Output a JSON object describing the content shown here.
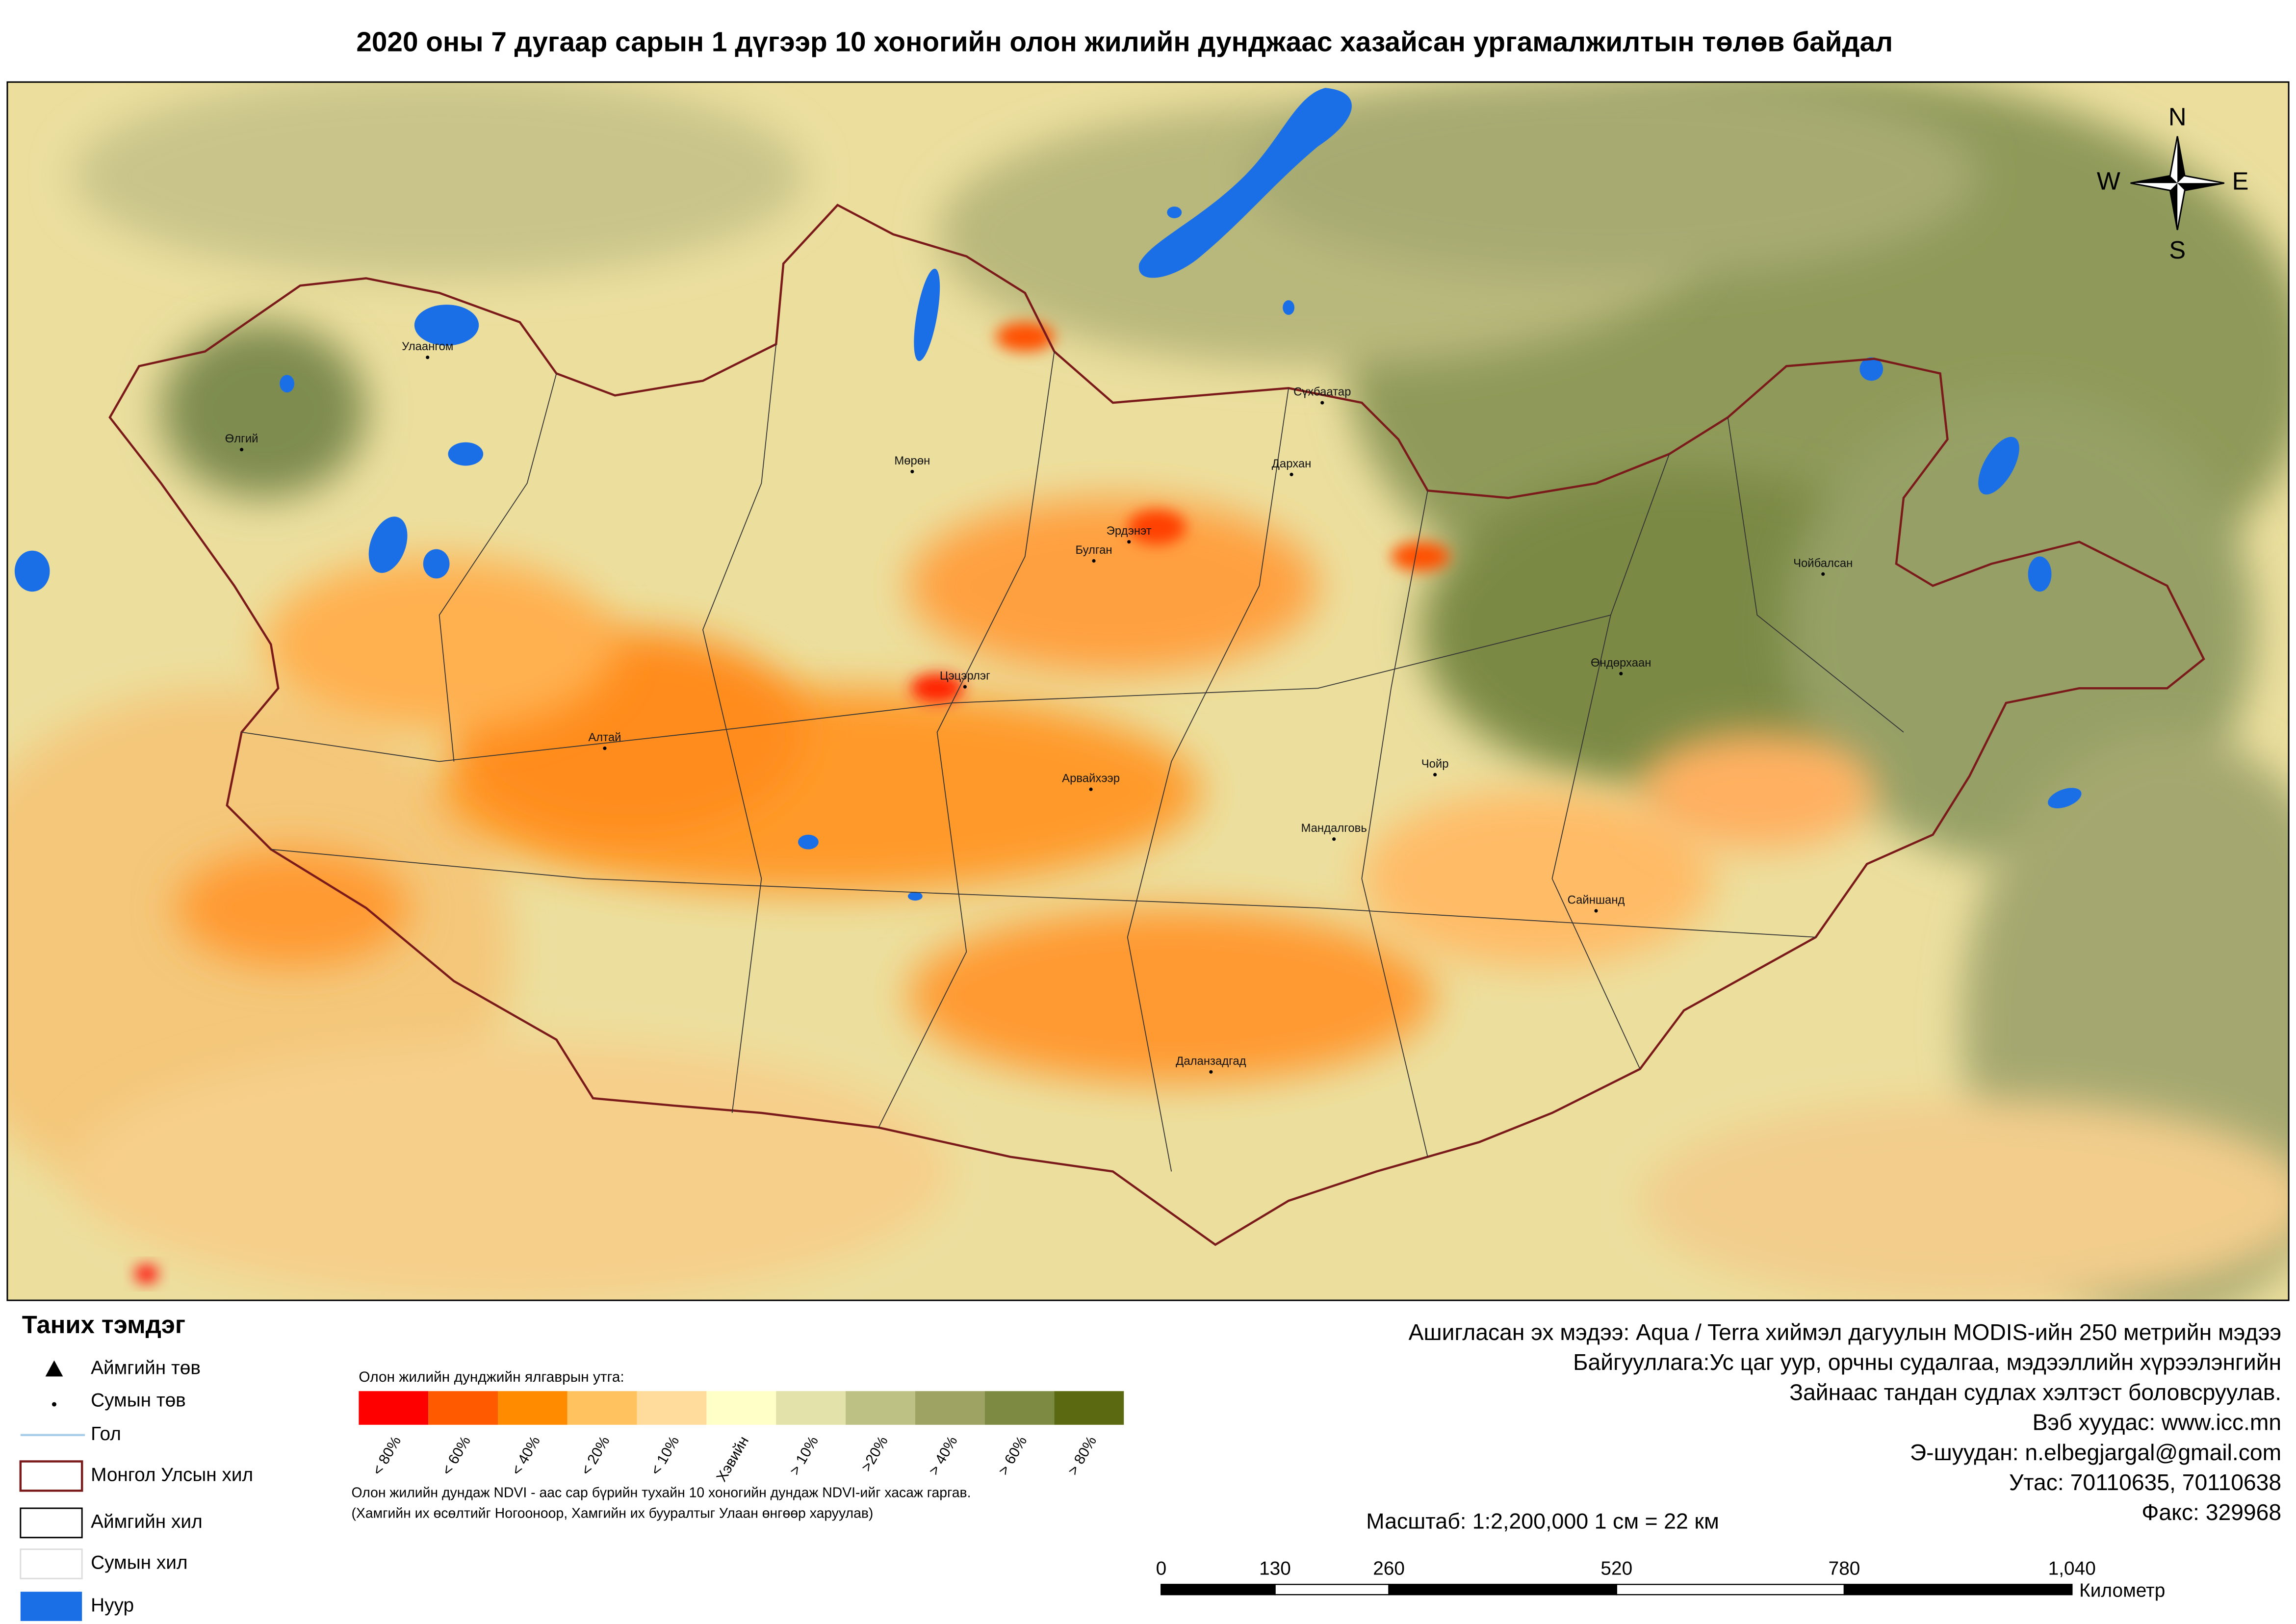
{
  "title": "2020 оны 7 дугаар сарын 1 дүгээр 10 хоногийн олон жилийн дунджаас хазайсан ургамалжилтын төлөв байдал",
  "map": {
    "places": [
      "Улаангом",
      "Өлгий",
      "Мөрөн",
      "Сүхбаатар",
      "Дархан",
      "Эрдэнэт",
      "Булган",
      "Чойбалсан",
      "Өндөрхаан",
      "Цэцэрлэг",
      "Алтай",
      "Арвайхээр",
      "Чойр",
      "Мандалговь",
      "Сайншанд",
      "Даланзадгад"
    ],
    "compass": {
      "n": "N",
      "s": "S",
      "w": "W",
      "e": "E"
    }
  },
  "legend": {
    "title": "Таних тэмдэг",
    "items": [
      "Аймгийн төв",
      "Сумын төв",
      "Гол",
      "Монгол Улсын хил",
      "Аймгийн хил",
      "Сумын хил",
      "Нуур"
    ]
  },
  "ndvi_scale": {
    "title": "Олон жилийн дунджийн ялгаврын утга:",
    "classes": [
      {
        "label": "< 80%",
        "color": "#ff0000"
      },
      {
        "label": "< 60%",
        "color": "#ff5a00"
      },
      {
        "label": "< 40%",
        "color": "#ff8c00"
      },
      {
        "label": "< 20%",
        "color": "#ffc25e"
      },
      {
        "label": "< 10%",
        "color": "#ffdc9c"
      },
      {
        "label": "Хэвийн",
        "color": "#ffffc8"
      },
      {
        "label": "> 10%",
        "color": "#e2e2aa"
      },
      {
        "label": ">20%",
        "color": "#bec184"
      },
      {
        "label": "> 40%",
        "color": "#9ea262"
      },
      {
        "label": "> 60%",
        "color": "#7d8a42"
      },
      {
        "label": "> 80%",
        "color": "#5b6a10"
      }
    ]
  },
  "note": [
    "Олон жилийн дундаж NDVI - аас сар бүрийн тухайн 10 хоногийн дундаж NDVI-ийг хасаж гаргав.",
    "(Хамгийн их өсөлтийг Ногооноор,  Хамгийн их бууралтыг Улаан өнгөөр харуулав)"
  ],
  "source": [
    "Ашигласан эх мэдээ: Aqua / Terra хиймэл дагуулын MODIS-ийн 250 метрийн мэдээ",
    "Байгууллага:Ус цаг уур, орчны судалгаа, мэдээллийн хүрээлэнгийн",
    "Зайнаас тандан судлах хэлтэст боловсруулав.",
    "Вэб хуудас: www.icc.mn",
    "Э-шуудан: n.elbegjargal@gmail.com",
    "Утас: 70110635, 70110638",
    "Факс: 329968"
  ],
  "scale": {
    "text": "Масштаб: 1:2,200,000    1 см = 22 км",
    "unit": "Километр",
    "ticks": [
      0,
      130,
      260,
      520,
      780,
      {
        "value": 1040,
        "label": "1,040"
      }
    ]
  }
}
